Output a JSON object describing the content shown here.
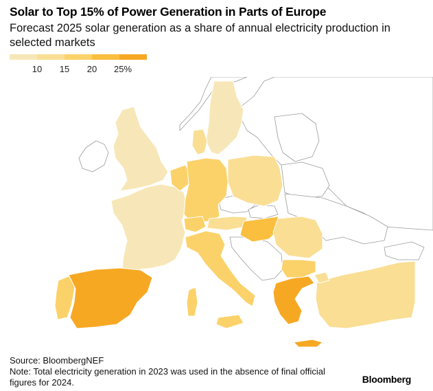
{
  "title": "Solar to Top 15% of Power Generation in Parts of Europe",
  "subtitle": "Forecast 2025 solar generation as a share of annual electricity production in selected markets",
  "legend": {
    "ticks": [
      "10",
      "15",
      "20",
      "25%"
    ],
    "colors": [
      "#f7e7b8",
      "#f9de94",
      "#fbd26a",
      "#fbbf3f",
      "#f7a823"
    ]
  },
  "chart_data": {
    "type": "choropleth",
    "metric": "Forecast 2025 solar generation share of annual electricity production (%)",
    "bins": [
      {
        "label": "below 10",
        "color": "#f7e7b8"
      },
      {
        "label": "10-15",
        "color": "#f9de94"
      },
      {
        "label": "15-20",
        "color": "#fbd26a"
      },
      {
        "label": "20-25",
        "color": "#fbbf3f"
      },
      {
        "label": "25+",
        "color": "#f7a823"
      }
    ],
    "regions": [
      {
        "name": "United Kingdom",
        "bin": 0
      },
      {
        "name": "Ireland",
        "bin": "no data"
      },
      {
        "name": "France",
        "bin": 0
      },
      {
        "name": "Spain",
        "bin": 4
      },
      {
        "name": "Portugal",
        "bin": 2
      },
      {
        "name": "Belgium",
        "bin": 2
      },
      {
        "name": "Netherlands",
        "bin": 2
      },
      {
        "name": "Germany",
        "bin": 2
      },
      {
        "name": "Denmark",
        "bin": 1
      },
      {
        "name": "Sweden",
        "bin": 0
      },
      {
        "name": "Poland",
        "bin": 1
      },
      {
        "name": "Czechia",
        "bin": "no data"
      },
      {
        "name": "Austria",
        "bin": 1
      },
      {
        "name": "Switzerland",
        "bin": 2
      },
      {
        "name": "Italy",
        "bin": 2
      },
      {
        "name": "Hungary",
        "bin": 3
      },
      {
        "name": "Romania",
        "bin": 1
      },
      {
        "name": "Bulgaria",
        "bin": 2
      },
      {
        "name": "Greece",
        "bin": 4
      },
      {
        "name": "Turkey",
        "bin": 1
      }
    ]
  },
  "source": "Source: BloombergNEF",
  "note": "Note: Total electricity generation in 2023 was used in the absence of final official figures for 2024.",
  "brand": "Bloomberg"
}
